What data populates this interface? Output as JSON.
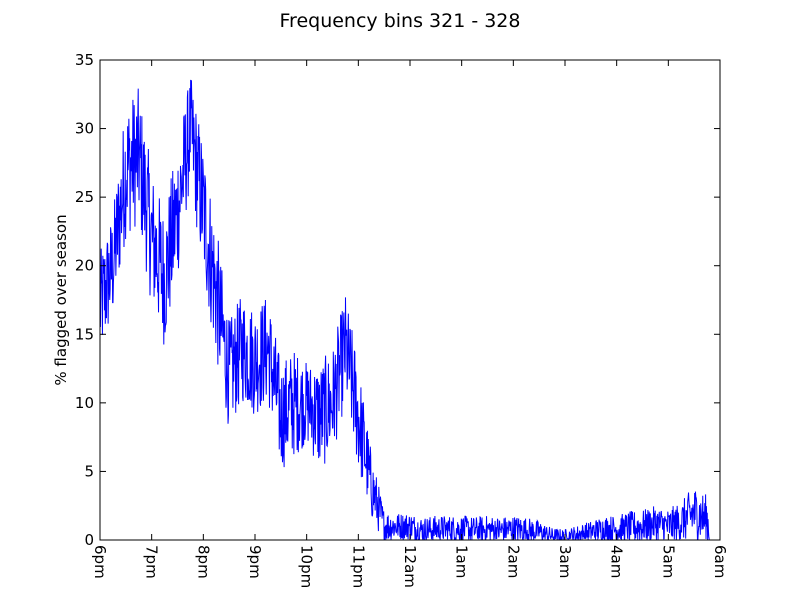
{
  "chart_data": {
    "type": "line",
    "title": "Frequency bins 321 - 328",
    "xlabel": "",
    "ylabel": "% flagged over season",
    "ylim": [
      0,
      35
    ],
    "yticks": [
      0,
      5,
      10,
      15,
      20,
      25,
      30,
      35
    ],
    "xticks": [
      "6pm",
      "7pm",
      "8pm",
      "9pm",
      "10pm",
      "11pm",
      "12am",
      "1am",
      "2am",
      "3am",
      "4am",
      "5am",
      "6am"
    ],
    "x_unit": "hours since 6pm",
    "xlim": [
      0,
      12
    ],
    "grid": false,
    "series": [
      {
        "color": "#0000ff",
        "x": [
          0,
          0.25,
          0.5,
          0.75,
          1,
          1.25,
          1.5,
          1.75,
          2,
          2.25,
          2.5,
          2.75,
          3,
          3.25,
          3.5,
          3.75,
          4,
          4.25,
          4.5,
          4.75,
          5,
          5.25,
          5.5,
          5.75,
          6,
          6.25,
          6.5,
          6.75,
          7,
          7.25,
          7.5,
          7.75,
          8,
          8.25,
          8.5,
          8.75,
          9,
          9.25,
          9.5,
          9.75,
          10,
          10.25,
          10.5,
          10.75,
          11,
          11.25,
          11.5,
          11.75,
          11.8
        ],
        "values": [
          17,
          20,
          27,
          28,
          22,
          19,
          24,
          30,
          24,
          18,
          12,
          14,
          13,
          14,
          9,
          10,
          10,
          9,
          10,
          14,
          9,
          4,
          1,
          1,
          1,
          0.7,
          0.8,
          0.8,
          0.8,
          0.7,
          0.8,
          0.7,
          0.8,
          0.7,
          0.6,
          0.3,
          0.2,
          0.4,
          0.6,
          0.8,
          0.8,
          0.9,
          1,
          1.2,
          1,
          1.3,
          2,
          1.5,
          0.5
        ],
        "noise": [
          4,
          4,
          5,
          5,
          5,
          5,
          5,
          4,
          5,
          5,
          4,
          4,
          4,
          4,
          4,
          4,
          3,
          4,
          4,
          4,
          4,
          2.5,
          1.2,
          1,
          1,
          1,
          1,
          1,
          1,
          1,
          1,
          1,
          1,
          1,
          0.8,
          0.6,
          0.6,
          0.7,
          0.8,
          1,
          1,
          1.2,
          1.2,
          1.3,
          1.3,
          1.5,
          2,
          1.8,
          1
        ]
      }
    ]
  }
}
